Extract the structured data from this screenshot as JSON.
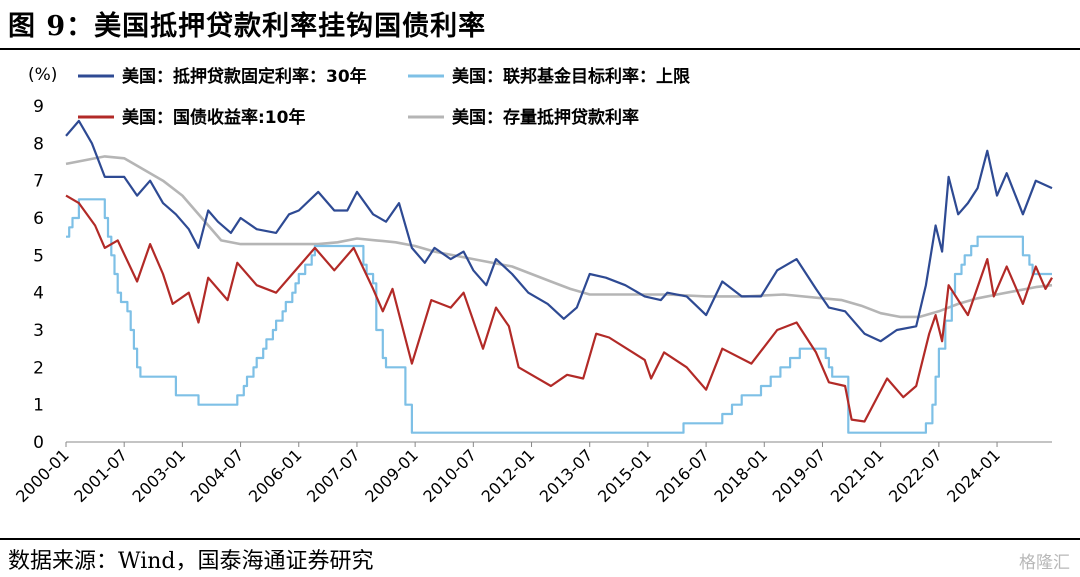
{
  "header": {
    "title": "图 9：美国抵押贷款利率挂钩国债利率"
  },
  "footer": {
    "source": "数据来源：Wind，国泰海通证券研究",
    "watermark": "格隆汇"
  },
  "chart_data": {
    "type": "line",
    "title": "图 9：美国抵押贷款利率挂钩国债利率",
    "ylabel": "(%)",
    "xlabel": "",
    "ylim": [
      0,
      9
    ],
    "yticks": [
      0,
      1,
      2,
      3,
      4,
      5,
      6,
      7,
      8,
      9
    ],
    "xlim": [
      "2000-01",
      "2025-06"
    ],
    "xticks": [
      "2000-01",
      "2001-07",
      "2003-01",
      "2004-07",
      "2006-01",
      "2007-07",
      "2009-01",
      "2010-07",
      "2012-01",
      "2013-07",
      "2015-01",
      "2016-07",
      "2018-01",
      "2019-07",
      "2021-01",
      "2022-07",
      "2024-01"
    ],
    "grid": false,
    "legend_position": "top",
    "series": [
      {
        "name": "美国：抵押贷款固定利率：30年",
        "color": "#2e4a93",
        "points": [
          [
            "2000-01",
            8.2
          ],
          [
            "2000-05",
            8.6
          ],
          [
            "2000-09",
            8.0
          ],
          [
            "2001-01",
            7.1
          ],
          [
            "2001-07",
            7.1
          ],
          [
            "2001-11",
            6.6
          ],
          [
            "2002-03",
            7.0
          ],
          [
            "2002-07",
            6.4
          ],
          [
            "2002-11",
            6.1
          ],
          [
            "2003-03",
            5.7
          ],
          [
            "2003-06",
            5.2
          ],
          [
            "2003-09",
            6.2
          ],
          [
            "2003-12",
            5.9
          ],
          [
            "2004-04",
            5.6
          ],
          [
            "2004-07",
            6.0
          ],
          [
            "2004-12",
            5.7
          ],
          [
            "2005-06",
            5.6
          ],
          [
            "2005-10",
            6.1
          ],
          [
            "2006-01",
            6.2
          ],
          [
            "2006-07",
            6.7
          ],
          [
            "2006-12",
            6.2
          ],
          [
            "2007-04",
            6.2
          ],
          [
            "2007-07",
            6.7
          ],
          [
            "2007-12",
            6.1
          ],
          [
            "2008-04",
            5.9
          ],
          [
            "2008-08",
            6.4
          ],
          [
            "2008-12",
            5.2
          ],
          [
            "2009-04",
            4.8
          ],
          [
            "2009-07",
            5.2
          ],
          [
            "2009-12",
            4.9
          ],
          [
            "2010-04",
            5.1
          ],
          [
            "2010-07",
            4.6
          ],
          [
            "2010-11",
            4.2
          ],
          [
            "2011-02",
            4.9
          ],
          [
            "2011-07",
            4.5
          ],
          [
            "2011-12",
            4.0
          ],
          [
            "2012-06",
            3.7
          ],
          [
            "2012-11",
            3.3
          ],
          [
            "2013-03",
            3.6
          ],
          [
            "2013-07",
            4.5
          ],
          [
            "2013-12",
            4.4
          ],
          [
            "2014-06",
            4.2
          ],
          [
            "2014-12",
            3.9
          ],
          [
            "2015-05",
            3.8
          ],
          [
            "2015-07",
            4.0
          ],
          [
            "2016-01",
            3.9
          ],
          [
            "2016-07",
            3.4
          ],
          [
            "2016-12",
            4.3
          ],
          [
            "2017-06",
            3.9
          ],
          [
            "2017-12",
            3.9
          ],
          [
            "2018-05",
            4.6
          ],
          [
            "2018-11",
            4.9
          ],
          [
            "2019-05",
            4.1
          ],
          [
            "2019-09",
            3.6
          ],
          [
            "2020-02",
            3.5
          ],
          [
            "2020-08",
            2.9
          ],
          [
            "2021-01",
            2.7
          ],
          [
            "2021-06",
            3.0
          ],
          [
            "2021-12",
            3.1
          ],
          [
            "2022-03",
            4.2
          ],
          [
            "2022-06",
            5.8
          ],
          [
            "2022-08",
            5.1
          ],
          [
            "2022-10",
            7.1
          ],
          [
            "2023-01",
            6.1
          ],
          [
            "2023-04",
            6.4
          ],
          [
            "2023-07",
            6.8
          ],
          [
            "2023-10",
            7.8
          ],
          [
            "2024-01",
            6.6
          ],
          [
            "2024-04",
            7.2
          ],
          [
            "2024-09",
            6.1
          ],
          [
            "2025-01",
            7.0
          ],
          [
            "2025-06",
            6.8
          ]
        ]
      },
      {
        "name": "美国：联邦基金目标利率：上限",
        "color": "#7ec0e6",
        "points": [
          [
            "2000-01",
            5.5
          ],
          [
            "2000-02",
            5.75
          ],
          [
            "2000-03",
            6.0
          ],
          [
            "2000-05",
            6.5
          ],
          [
            "2001-01",
            6.0
          ],
          [
            "2001-02",
            5.5
          ],
          [
            "2001-03",
            5.0
          ],
          [
            "2001-04",
            4.5
          ],
          [
            "2001-05",
            4.0
          ],
          [
            "2001-06",
            3.75
          ],
          [
            "2001-08",
            3.5
          ],
          [
            "2001-09",
            3.0
          ],
          [
            "2001-10",
            2.5
          ],
          [
            "2001-11",
            2.0
          ],
          [
            "2001-12",
            1.75
          ],
          [
            "2002-11",
            1.25
          ],
          [
            "2003-06",
            1.0
          ],
          [
            "2004-06",
            1.25
          ],
          [
            "2004-08",
            1.5
          ],
          [
            "2004-09",
            1.75
          ],
          [
            "2004-11",
            2.0
          ],
          [
            "2004-12",
            2.25
          ],
          [
            "2005-02",
            2.5
          ],
          [
            "2005-03",
            2.75
          ],
          [
            "2005-05",
            3.0
          ],
          [
            "2005-06",
            3.25
          ],
          [
            "2005-08",
            3.5
          ],
          [
            "2005-09",
            3.75
          ],
          [
            "2005-11",
            4.0
          ],
          [
            "2005-12",
            4.25
          ],
          [
            "2006-01",
            4.5
          ],
          [
            "2006-03",
            4.75
          ],
          [
            "2006-05",
            5.0
          ],
          [
            "2006-06",
            5.25
          ],
          [
            "2007-09",
            4.75
          ],
          [
            "2007-10",
            4.5
          ],
          [
            "2007-12",
            4.25
          ],
          [
            "2008-01",
            3.0
          ],
          [
            "2008-03",
            2.25
          ],
          [
            "2008-04",
            2.0
          ],
          [
            "2008-10",
            1.0
          ],
          [
            "2008-12",
            0.25
          ],
          [
            "2015-12",
            0.5
          ],
          [
            "2016-12",
            0.75
          ],
          [
            "2017-03",
            1.0
          ],
          [
            "2017-06",
            1.25
          ],
          [
            "2017-12",
            1.5
          ],
          [
            "2018-03",
            1.75
          ],
          [
            "2018-06",
            2.0
          ],
          [
            "2018-09",
            2.25
          ],
          [
            "2018-12",
            2.5
          ],
          [
            "2019-08",
            2.25
          ],
          [
            "2019-09",
            2.0
          ],
          [
            "2019-10",
            1.75
          ],
          [
            "2020-03",
            0.25
          ],
          [
            "2022-03",
            0.5
          ],
          [
            "2022-05",
            1.0
          ],
          [
            "2022-06",
            1.75
          ],
          [
            "2022-07",
            2.5
          ],
          [
            "2022-09",
            3.25
          ],
          [
            "2022-11",
            4.0
          ],
          [
            "2022-12",
            4.5
          ],
          [
            "2023-02",
            4.75
          ],
          [
            "2023-03",
            5.0
          ],
          [
            "2023-05",
            5.25
          ],
          [
            "2023-07",
            5.5
          ],
          [
            "2024-09",
            5.0
          ],
          [
            "2024-11",
            4.75
          ],
          [
            "2024-12",
            4.5
          ],
          [
            "2025-06",
            4.5
          ]
        ]
      },
      {
        "name": "美国：国债收益率:10年",
        "color": "#b22a27",
        "points": [
          [
            "2000-01",
            6.6
          ],
          [
            "2000-05",
            6.4
          ],
          [
            "2000-10",
            5.8
          ],
          [
            "2001-01",
            5.2
          ],
          [
            "2001-05",
            5.4
          ],
          [
            "2001-11",
            4.3
          ],
          [
            "2002-03",
            5.3
          ],
          [
            "2002-07",
            4.5
          ],
          [
            "2002-10",
            3.7
          ],
          [
            "2003-03",
            4.0
          ],
          [
            "2003-06",
            3.2
          ],
          [
            "2003-09",
            4.4
          ],
          [
            "2004-03",
            3.8
          ],
          [
            "2004-06",
            4.8
          ],
          [
            "2004-12",
            4.2
          ],
          [
            "2005-06",
            4.0
          ],
          [
            "2005-11",
            4.5
          ],
          [
            "2006-06",
            5.2
          ],
          [
            "2006-12",
            4.6
          ],
          [
            "2007-06",
            5.2
          ],
          [
            "2007-12",
            4.1
          ],
          [
            "2008-03",
            3.5
          ],
          [
            "2008-06",
            4.1
          ],
          [
            "2008-12",
            2.1
          ],
          [
            "2009-06",
            3.8
          ],
          [
            "2009-12",
            3.6
          ],
          [
            "2010-04",
            4.0
          ],
          [
            "2010-10",
            2.5
          ],
          [
            "2011-02",
            3.6
          ],
          [
            "2011-06",
            3.1
          ],
          [
            "2011-09",
            2.0
          ],
          [
            "2012-07",
            1.5
          ],
          [
            "2012-12",
            1.8
          ],
          [
            "2013-05",
            1.7
          ],
          [
            "2013-09",
            2.9
          ],
          [
            "2014-01",
            2.8
          ],
          [
            "2014-12",
            2.2
          ],
          [
            "2015-02",
            1.7
          ],
          [
            "2015-06",
            2.4
          ],
          [
            "2016-01",
            2.0
          ],
          [
            "2016-07",
            1.4
          ],
          [
            "2016-12",
            2.5
          ],
          [
            "2017-09",
            2.1
          ],
          [
            "2018-05",
            3.0
          ],
          [
            "2018-11",
            3.2
          ],
          [
            "2019-05",
            2.4
          ],
          [
            "2019-09",
            1.6
          ],
          [
            "2020-02",
            1.5
          ],
          [
            "2020-04",
            0.6
          ],
          [
            "2020-08",
            0.55
          ],
          [
            "2021-03",
            1.7
          ],
          [
            "2021-08",
            1.2
          ],
          [
            "2021-12",
            1.5
          ],
          [
            "2022-04",
            2.9
          ],
          [
            "2022-06",
            3.4
          ],
          [
            "2022-08",
            2.7
          ],
          [
            "2022-10",
            4.2
          ],
          [
            "2023-04",
            3.4
          ],
          [
            "2023-10",
            4.9
          ],
          [
            "2023-12",
            3.9
          ],
          [
            "2024-04",
            4.7
          ],
          [
            "2024-09",
            3.7
          ],
          [
            "2025-01",
            4.7
          ],
          [
            "2025-04",
            4.1
          ],
          [
            "2025-06",
            4.4
          ]
        ]
      },
      {
        "name": "美国：存量抵押贷款利率",
        "color": "#b5b5b5",
        "points": [
          [
            "2000-01",
            7.45
          ],
          [
            "2000-07",
            7.55
          ],
          [
            "2001-01",
            7.65
          ],
          [
            "2001-07",
            7.6
          ],
          [
            "2002-01",
            7.3
          ],
          [
            "2002-07",
            7.0
          ],
          [
            "2003-01",
            6.6
          ],
          [
            "2003-07",
            6.0
          ],
          [
            "2004-01",
            5.4
          ],
          [
            "2004-07",
            5.3
          ],
          [
            "2005-07",
            5.3
          ],
          [
            "2006-07",
            5.3
          ],
          [
            "2007-01",
            5.35
          ],
          [
            "2007-07",
            5.45
          ],
          [
            "2008-01",
            5.4
          ],
          [
            "2008-07",
            5.35
          ],
          [
            "2009-01",
            5.25
          ],
          [
            "2009-07",
            5.1
          ],
          [
            "2010-07",
            4.9
          ],
          [
            "2011-07",
            4.7
          ],
          [
            "2012-07",
            4.3
          ],
          [
            "2013-01",
            4.1
          ],
          [
            "2013-07",
            3.95
          ],
          [
            "2014-07",
            3.95
          ],
          [
            "2015-07",
            3.95
          ],
          [
            "2016-07",
            3.9
          ],
          [
            "2017-07",
            3.9
          ],
          [
            "2018-07",
            3.95
          ],
          [
            "2019-07",
            3.85
          ],
          [
            "2020-01",
            3.8
          ],
          [
            "2020-07",
            3.65
          ],
          [
            "2021-01",
            3.45
          ],
          [
            "2021-07",
            3.35
          ],
          [
            "2022-01",
            3.35
          ],
          [
            "2022-07",
            3.5
          ],
          [
            "2023-01",
            3.7
          ],
          [
            "2023-07",
            3.85
          ],
          [
            "2024-01",
            3.95
          ],
          [
            "2024-07",
            4.05
          ],
          [
            "2025-01",
            4.15
          ],
          [
            "2025-06",
            4.2
          ]
        ]
      }
    ]
  }
}
